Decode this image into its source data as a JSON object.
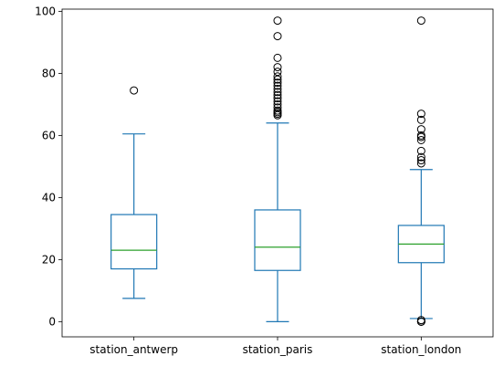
{
  "chart_data": {
    "type": "box",
    "title": "",
    "xlabel": "",
    "ylabel": "",
    "ylim": [
      -4.9,
      100.7
    ],
    "yticks": [
      0,
      20,
      40,
      60,
      80,
      100
    ],
    "grid": false,
    "legend": "none",
    "colors": {
      "box": "#1f77b4",
      "median": "#2ca02c",
      "outlier": "#000000",
      "axes": "#000000"
    },
    "categories": [
      "station_antwerp",
      "station_paris",
      "station_london"
    ],
    "boxes": [
      {
        "name": "station_antwerp",
        "whisker_low": 7.5,
        "q1": 17,
        "median": 23,
        "q3": 34.5,
        "whisker_high": 60.5,
        "outliers": [
          74.5
        ]
      },
      {
        "name": "station_paris",
        "whisker_low": 0,
        "q1": 16.5,
        "median": 24,
        "q3": 36,
        "whisker_high": 64,
        "outliers": [
          66.5,
          67,
          67.5,
          68,
          69,
          70,
          71,
          72,
          73,
          74,
          75,
          76,
          77,
          78,
          79,
          80.5,
          82,
          85,
          92,
          97
        ]
      },
      {
        "name": "station_london",
        "whisker_low": 1,
        "q1": 19,
        "median": 25,
        "q3": 31,
        "whisker_high": 49,
        "outliers": [
          0,
          0,
          0,
          0.5,
          51,
          52,
          53,
          55,
          58.5,
          59.5,
          60,
          62,
          65,
          67,
          97
        ]
      }
    ]
  }
}
